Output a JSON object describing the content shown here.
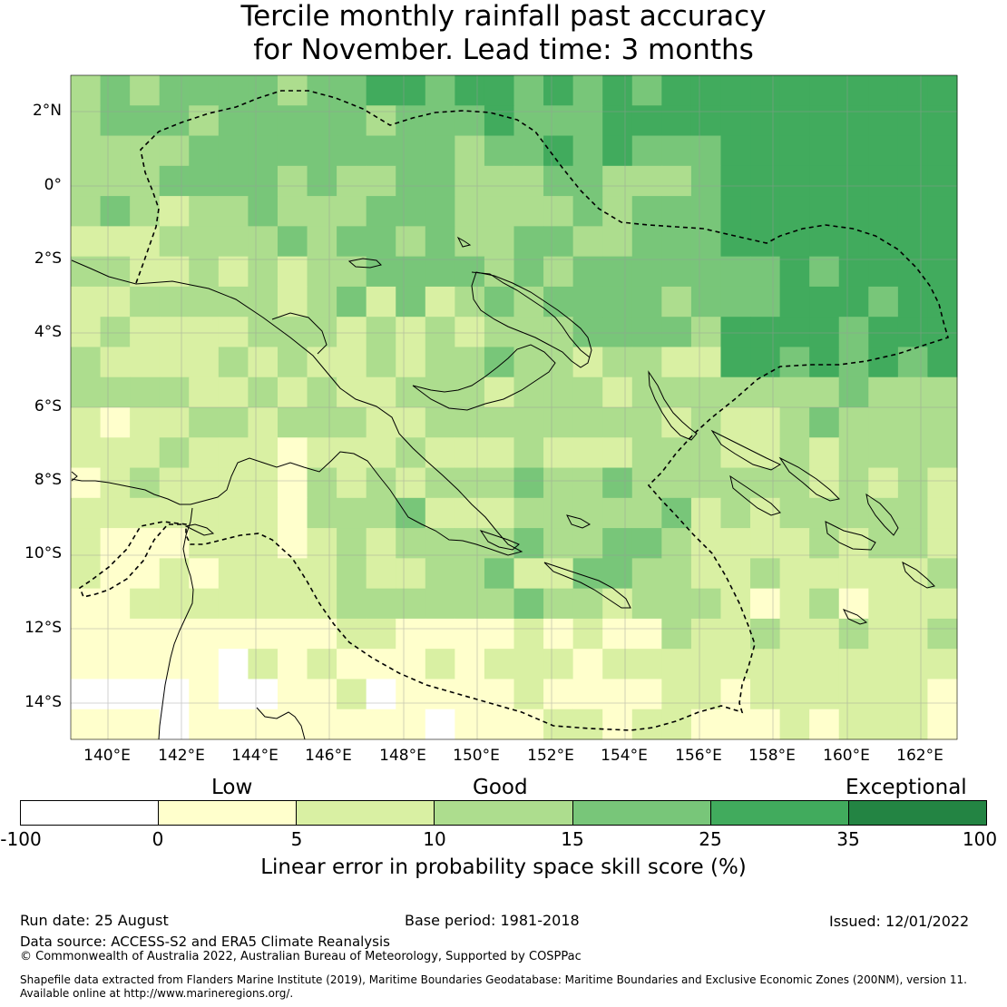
{
  "title": {
    "line1": "Tercile monthly rainfall past accuracy",
    "line2": "for November. Lead time: 3 months"
  },
  "map": {
    "lat_labels": [
      "2°N",
      "0°",
      "2°S",
      "4°S",
      "6°S",
      "8°S",
      "10°S",
      "12°S",
      "14°S"
    ],
    "lon_labels": [
      "140°E",
      "142°E",
      "144°E",
      "146°E",
      "148°E",
      "150°E",
      "152°E",
      "154°E",
      "156°E",
      "158°E",
      "160°E",
      "162°E"
    ],
    "colors": {
      "white": "#ffffff",
      "low": "#ffffcc",
      "c5": "#d9f0a3",
      "c10": "#addd8e",
      "c15": "#78c679",
      "c25": "#41ab5d",
      "c35": "#238443",
      "coast": "#000000"
    }
  },
  "colorbar": {
    "categories": [
      "Low",
      "Good",
      "Exceptional"
    ],
    "ticks": [
      "-100",
      "0",
      "5",
      "10",
      "15",
      "25",
      "35",
      "100"
    ],
    "colors": [
      "#ffffff",
      "#ffffcc",
      "#d9f0a3",
      "#addd8e",
      "#78c679",
      "#41ab5d",
      "#238443"
    ],
    "label": "Linear error in probability space skill score (%)"
  },
  "footer": {
    "run_date": "Run date: 25 August",
    "base_period": "Base period: 1981-2018",
    "issued": "Issued: 12/01/2022",
    "data_source": "Data source: ACCESS-S2 and ERA5 Climate Reanalysis",
    "copyright": "© Commonwealth of Australia 2022, Australian Bureau of Meteorology, Supported by COSPPac",
    "shapefile_1": "Shapefile data extracted from Flanders Marine Institute (2019), Maritime Boundaries Geodatabase: Maritime Boundaries and Exclusive Economic Zones (200NM), version 11.",
    "shapefile_2": "Available online at http://www.marineregions.org/."
  }
}
